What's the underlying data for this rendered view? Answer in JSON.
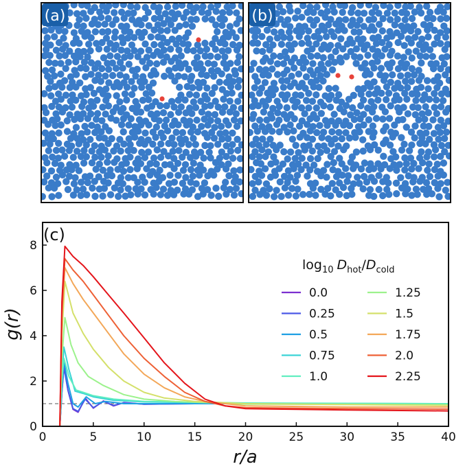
{
  "panels": {
    "a": {
      "label": "(a)",
      "particle_color": "#3a7cc9",
      "highlight_color": "#e8433a",
      "hot_particles": 2
    },
    "b": {
      "label": "(b)",
      "particle_color": "#3a7cc9",
      "highlight_color": "#e8433a",
      "hot_particles": 2
    }
  },
  "chart_data": {
    "type": "line",
    "panel_label": "(c)",
    "xlabel": "r/a",
    "ylabel": "g(r)",
    "xlim": [
      0,
      40
    ],
    "ylim": [
      0,
      9
    ],
    "xticks": [
      0,
      5,
      10,
      15,
      20,
      25,
      30,
      35,
      40
    ],
    "yticks": [
      0,
      2,
      4,
      6,
      8
    ],
    "reference_line": {
      "y": 1,
      "style": "dashed"
    },
    "legend": {
      "title_base": "log",
      "title_sub": "10",
      "title_var1": "D",
      "title_sub1": "hot",
      "title_slash": "/",
      "title_var2": "D",
      "title_sub2": "cold",
      "placement": "top-right",
      "columns": 2
    },
    "series": [
      {
        "name": "0.0",
        "color": "#7b2fd0",
        "points": [
          [
            1.7,
            0
          ],
          [
            1.9,
            1.5
          ],
          [
            2.1,
            2.7
          ],
          [
            2.5,
            1.6
          ],
          [
            3.0,
            0.75
          ],
          [
            3.5,
            0.62
          ],
          [
            4.2,
            1.25
          ],
          [
            5.0,
            0.8
          ],
          [
            6.0,
            1.12
          ],
          [
            7.0,
            0.9
          ],
          [
            8.0,
            1.05
          ],
          [
            10.0,
            0.98
          ],
          [
            15.0,
            1.0
          ],
          [
            40.0,
            1.0
          ]
        ]
      },
      {
        "name": "0.25",
        "color": "#4a58e6",
        "points": [
          [
            1.7,
            0
          ],
          [
            1.9,
            1.5
          ],
          [
            2.1,
            2.6
          ],
          [
            2.5,
            1.6
          ],
          [
            3.0,
            0.78
          ],
          [
            3.5,
            0.66
          ],
          [
            4.2,
            1.2
          ],
          [
            5.0,
            0.82
          ],
          [
            6.0,
            1.1
          ],
          [
            7.0,
            0.92
          ],
          [
            8.0,
            1.04
          ],
          [
            10.0,
            0.98
          ],
          [
            15.0,
            1.0
          ],
          [
            40.0,
            1.0
          ]
        ]
      },
      {
        "name": "0.5",
        "color": "#1d9fe3",
        "points": [
          [
            1.7,
            0
          ],
          [
            1.9,
            1.7
          ],
          [
            2.1,
            2.9
          ],
          [
            2.5,
            1.9
          ],
          [
            3.0,
            1.0
          ],
          [
            3.5,
            0.85
          ],
          [
            4.3,
            1.3
          ],
          [
            5.2,
            1.0
          ],
          [
            6.2,
            1.1
          ],
          [
            8.0,
            1.0
          ],
          [
            15.0,
            1.0
          ],
          [
            40.0,
            1.0
          ]
        ]
      },
      {
        "name": "0.75",
        "color": "#3ad3d6",
        "points": [
          [
            1.7,
            0
          ],
          [
            1.9,
            2.0
          ],
          [
            2.1,
            3.5
          ],
          [
            2.6,
            2.5
          ],
          [
            3.2,
            1.55
          ],
          [
            4.0,
            1.45
          ],
          [
            5.0,
            1.3
          ],
          [
            7.0,
            1.15
          ],
          [
            10.0,
            1.08
          ],
          [
            20.0,
            1.02
          ],
          [
            40.0,
            1.0
          ]
        ]
      },
      {
        "name": "1.0",
        "color": "#60eec0",
        "points": [
          [
            1.7,
            0
          ],
          [
            1.9,
            2.0
          ],
          [
            2.1,
            3.0
          ],
          [
            2.6,
            2.2
          ],
          [
            3.3,
            1.6
          ],
          [
            4.0,
            1.5
          ],
          [
            5.0,
            1.35
          ],
          [
            7.0,
            1.2
          ],
          [
            10.0,
            1.1
          ],
          [
            20.0,
            1.03
          ],
          [
            40.0,
            1.0
          ]
        ]
      },
      {
        "name": "1.25",
        "color": "#9cf28c",
        "points": [
          [
            1.7,
            0
          ],
          [
            1.9,
            3.0
          ],
          [
            2.2,
            4.8
          ],
          [
            2.8,
            3.6
          ],
          [
            3.5,
            2.8
          ],
          [
            4.5,
            2.2
          ],
          [
            6.0,
            1.8
          ],
          [
            8.0,
            1.4
          ],
          [
            10.0,
            1.2
          ],
          [
            13.0,
            1.1
          ],
          [
            20.0,
            0.98
          ],
          [
            40.0,
            0.95
          ]
        ]
      },
      {
        "name": "1.5",
        "color": "#d4e06a",
        "points": [
          [
            1.7,
            0
          ],
          [
            1.9,
            4.0
          ],
          [
            2.2,
            6.4
          ],
          [
            3.0,
            5.0
          ],
          [
            4.0,
            4.1
          ],
          [
            5.0,
            3.4
          ],
          [
            6.5,
            2.6
          ],
          [
            8.0,
            2.0
          ],
          [
            10.0,
            1.5
          ],
          [
            12.0,
            1.25
          ],
          [
            15.0,
            1.1
          ],
          [
            20.0,
            1.0
          ],
          [
            40.0,
            0.92
          ]
        ]
      },
      {
        "name": "1.75",
        "color": "#f3a758",
        "points": [
          [
            1.7,
            0
          ],
          [
            1.9,
            4.8
          ],
          [
            2.2,
            7.0
          ],
          [
            3.0,
            6.3
          ],
          [
            4.0,
            5.6
          ],
          [
            5.0,
            5.0
          ],
          [
            6.5,
            4.1
          ],
          [
            8.0,
            3.2
          ],
          [
            10.0,
            2.3
          ],
          [
            12.0,
            1.7
          ],
          [
            14.0,
            1.3
          ],
          [
            16.0,
            1.1
          ],
          [
            20.0,
            0.9
          ],
          [
            30.0,
            0.85
          ],
          [
            40.0,
            0.85
          ]
        ]
      },
      {
        "name": "2.0",
        "color": "#ee6035",
        "points": [
          [
            1.7,
            0
          ],
          [
            1.9,
            5.0
          ],
          [
            2.2,
            7.4
          ],
          [
            3.0,
            6.9
          ],
          [
            4.0,
            6.4
          ],
          [
            5.0,
            5.8
          ],
          [
            6.5,
            4.9
          ],
          [
            8.0,
            4.0
          ],
          [
            10.0,
            3.0
          ],
          [
            12.0,
            2.2
          ],
          [
            14.0,
            1.5
          ],
          [
            16.0,
            1.1
          ],
          [
            18.0,
            0.9
          ],
          [
            20.0,
            0.82
          ],
          [
            30.0,
            0.78
          ],
          [
            40.0,
            0.76
          ]
        ]
      },
      {
        "name": "2.25",
        "color": "#e4141a",
        "points": [
          [
            1.7,
            0
          ],
          [
            1.9,
            5.5
          ],
          [
            2.2,
            7.95
          ],
          [
            3.0,
            7.5
          ],
          [
            4.0,
            7.1
          ],
          [
            5.0,
            6.6
          ],
          [
            6.5,
            5.8
          ],
          [
            8.0,
            5.0
          ],
          [
            10.0,
            3.9
          ],
          [
            12.0,
            2.8
          ],
          [
            14.0,
            1.9
          ],
          [
            16.0,
            1.2
          ],
          [
            18.0,
            0.9
          ],
          [
            20.0,
            0.78
          ],
          [
            25.0,
            0.75
          ],
          [
            30.0,
            0.72
          ],
          [
            40.0,
            0.68
          ]
        ]
      }
    ]
  }
}
